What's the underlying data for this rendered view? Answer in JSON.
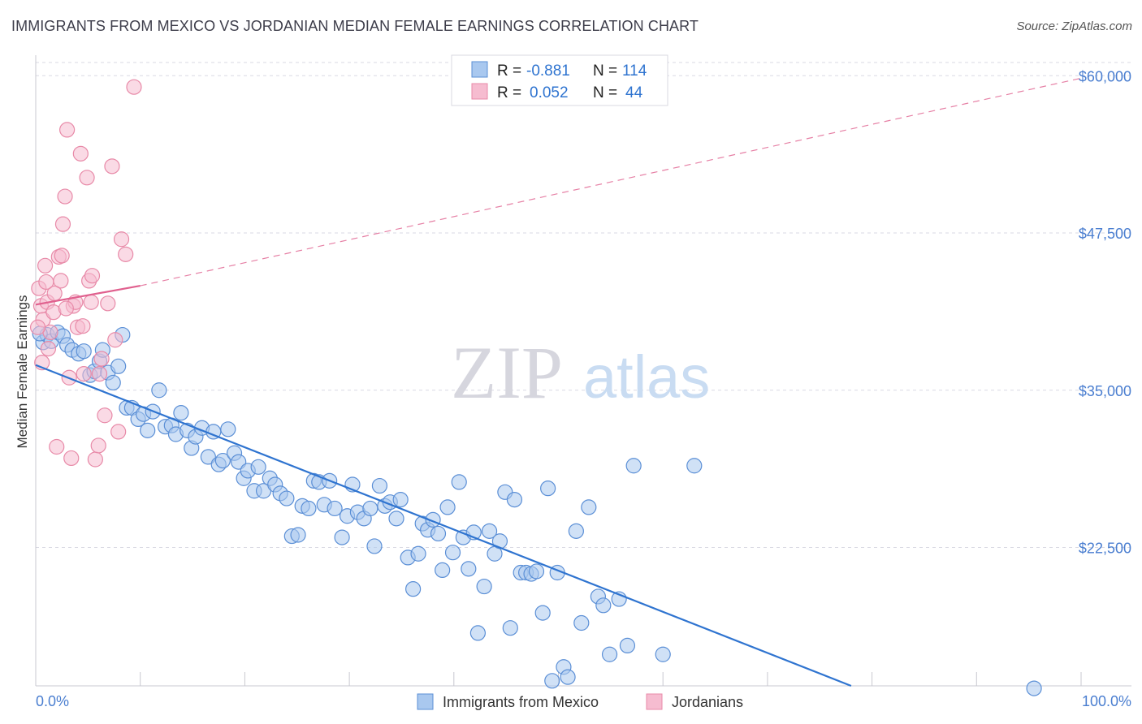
{
  "title": "IMMIGRANTS FROM MEXICO VS JORDANIAN MEDIAN FEMALE EARNINGS CORRELATION CHART",
  "source": "Source: ZipAtlas.com",
  "watermark": {
    "zip": "ZIP",
    "atlas": "atlas"
  },
  "colors": {
    "mexico_fill": "#a9c8ef",
    "mexico_stroke": "#5b8fd6",
    "mexico_line": "#2f74d0",
    "jordan_fill": "#f6bcd0",
    "jordan_stroke": "#e88aa8",
    "jordan_line": "#e0608e",
    "axis_text": "#4a7ed0",
    "grid": "#d9d9e3"
  },
  "legend": {
    "rows": [
      {
        "r_label": "R =",
        "r_value": "-0.881",
        "n_label": "N =",
        "n_value": "114"
      },
      {
        "r_label": "R =",
        "r_value": "0.052",
        "n_label": "N =",
        "n_value": "44"
      }
    ]
  },
  "chart_data": {
    "type": "scatter",
    "title": "IMMIGRANTS FROM MEXICO VS JORDANIAN MEDIAN FEMALE EARNINGS CORRELATION CHART",
    "xlabel": "",
    "ylabel": "Median Female Earnings",
    "xlim": [
      0,
      100
    ],
    "ylim": [
      11500,
      61500
    ],
    "x_tick_labels": [
      "0.0%",
      "100.0%"
    ],
    "y_ticks": [
      22500,
      35000,
      47500,
      60000
    ],
    "y_tick_labels": [
      "$22,500",
      "$35,000",
      "$47,500",
      "$60,000"
    ],
    "grid": true,
    "legend_position": "top-center",
    "series": [
      {
        "name": "Immigrants from Mexico",
        "trend": {
          "x": [
            0,
            78
          ],
          "y": [
            37000,
            11500
          ],
          "dashed_to": null
        },
        "points": [
          [
            0.7,
            38.8
          ],
          [
            1.1,
            39.4
          ],
          [
            1.5,
            38.9
          ],
          [
            2.1,
            39.6
          ],
          [
            2.6,
            39.3
          ],
          [
            3.0,
            38.6
          ],
          [
            3.5,
            38.2
          ],
          [
            4.1,
            37.9
          ],
          [
            4.6,
            38.1
          ],
          [
            5.2,
            36.2
          ],
          [
            5.6,
            36.5
          ],
          [
            6.1,
            37.3
          ],
          [
            6.4,
            38.2
          ],
          [
            6.9,
            36.4
          ],
          [
            7.4,
            35.6
          ],
          [
            7.9,
            36.9
          ],
          [
            8.3,
            39.4
          ],
          [
            8.7,
            33.6
          ],
          [
            9.2,
            33.6
          ],
          [
            9.8,
            32.7
          ],
          [
            10.3,
            33.1
          ],
          [
            10.7,
            31.8
          ],
          [
            11.2,
            33.3
          ],
          [
            11.8,
            35.0
          ],
          [
            12.4,
            32.1
          ],
          [
            13.0,
            32.2
          ],
          [
            13.4,
            31.5
          ],
          [
            13.9,
            33.2
          ],
          [
            14.5,
            31.8
          ],
          [
            14.9,
            30.4
          ],
          [
            15.3,
            31.3
          ],
          [
            15.9,
            32.0
          ],
          [
            16.5,
            29.7
          ],
          [
            17.0,
            31.7
          ],
          [
            17.5,
            29.1
          ],
          [
            17.9,
            29.4
          ],
          [
            18.4,
            31.9
          ],
          [
            19.0,
            30.0
          ],
          [
            19.4,
            29.3
          ],
          [
            19.9,
            28.0
          ],
          [
            20.3,
            28.6
          ],
          [
            20.9,
            27.0
          ],
          [
            21.3,
            28.9
          ],
          [
            21.8,
            27.0
          ],
          [
            22.4,
            28.0
          ],
          [
            22.9,
            27.5
          ],
          [
            23.4,
            26.8
          ],
          [
            24.0,
            26.4
          ],
          [
            24.5,
            23.4
          ],
          [
            25.1,
            23.5
          ],
          [
            25.5,
            25.8
          ],
          [
            26.1,
            25.6
          ],
          [
            26.6,
            27.8
          ],
          [
            27.1,
            27.7
          ],
          [
            27.6,
            25.9
          ],
          [
            28.1,
            27.8
          ],
          [
            28.6,
            25.6
          ],
          [
            29.3,
            23.3
          ],
          [
            29.8,
            25.0
          ],
          [
            30.3,
            27.5
          ],
          [
            30.8,
            25.3
          ],
          [
            31.4,
            24.8
          ],
          [
            32.0,
            25.6
          ],
          [
            32.4,
            22.6
          ],
          [
            32.9,
            27.4
          ],
          [
            33.4,
            25.8
          ],
          [
            33.9,
            26.1
          ],
          [
            34.5,
            24.8
          ],
          [
            34.9,
            26.3
          ],
          [
            35.6,
            21.7
          ],
          [
            36.1,
            19.2
          ],
          [
            36.6,
            22.0
          ],
          [
            37.0,
            24.4
          ],
          [
            37.5,
            23.9
          ],
          [
            38.0,
            24.7
          ],
          [
            38.5,
            23.6
          ],
          [
            38.9,
            20.7
          ],
          [
            39.4,
            25.7
          ],
          [
            39.9,
            22.1
          ],
          [
            40.5,
            27.7
          ],
          [
            40.9,
            23.3
          ],
          [
            41.4,
            20.8
          ],
          [
            41.9,
            23.7
          ],
          [
            42.3,
            15.7
          ],
          [
            42.9,
            19.4
          ],
          [
            43.4,
            23.8
          ],
          [
            43.9,
            22.0
          ],
          [
            44.4,
            23.0
          ],
          [
            44.9,
            26.9
          ],
          [
            45.4,
            16.1
          ],
          [
            45.8,
            26.3
          ],
          [
            46.4,
            20.5
          ],
          [
            46.9,
            20.5
          ],
          [
            47.4,
            20.4
          ],
          [
            47.9,
            20.6
          ],
          [
            48.5,
            17.3
          ],
          [
            49.0,
            27.2
          ],
          [
            49.4,
            11.9
          ],
          [
            49.9,
            20.5
          ],
          [
            50.5,
            13.0
          ],
          [
            50.9,
            12.2
          ],
          [
            51.7,
            23.8
          ],
          [
            52.2,
            16.5
          ],
          [
            52.9,
            25.7
          ],
          [
            53.8,
            18.6
          ],
          [
            54.3,
            17.9
          ],
          [
            54.9,
            14.0
          ],
          [
            55.8,
            18.4
          ],
          [
            56.6,
            14.7
          ],
          [
            57.2,
            29.0
          ],
          [
            60.0,
            14.0
          ],
          [
            63.0,
            29.0
          ],
          [
            95.5,
            11.3
          ],
          [
            0.4,
            39.5
          ]
        ]
      },
      {
        "name": "Jordanians",
        "trend": {
          "x": [
            0,
            10
          ],
          "y": [
            41800,
            43300
          ],
          "dashed_to": [
            100,
            59800
          ]
        },
        "points": [
          [
            0.3,
            43.1
          ],
          [
            0.5,
            41.7
          ],
          [
            0.7,
            40.6
          ],
          [
            0.9,
            44.9
          ],
          [
            1.1,
            42.0
          ],
          [
            1.4,
            39.6
          ],
          [
            1.7,
            41.2
          ],
          [
            2.0,
            30.5
          ],
          [
            2.2,
            45.6
          ],
          [
            2.4,
            43.7
          ],
          [
            2.6,
            48.2
          ],
          [
            2.8,
            50.4
          ],
          [
            3.0,
            55.7
          ],
          [
            3.2,
            36.0
          ],
          [
            3.4,
            29.6
          ],
          [
            3.6,
            41.7
          ],
          [
            3.8,
            42.0
          ],
          [
            4.0,
            40.0
          ],
          [
            4.3,
            53.8
          ],
          [
            4.6,
            36.3
          ],
          [
            4.9,
            51.9
          ],
          [
            5.1,
            43.7
          ],
          [
            5.4,
            44.1
          ],
          [
            5.7,
            29.5
          ],
          [
            6.0,
            30.6
          ],
          [
            6.3,
            37.5
          ],
          [
            6.6,
            33.0
          ],
          [
            6.9,
            41.9
          ],
          [
            7.3,
            52.8
          ],
          [
            7.6,
            39.0
          ],
          [
            7.9,
            31.7
          ],
          [
            8.2,
            47.0
          ],
          [
            8.6,
            45.8
          ],
          [
            0.6,
            37.2
          ],
          [
            1.8,
            42.7
          ],
          [
            2.9,
            41.5
          ],
          [
            4.5,
            40.1
          ],
          [
            5.3,
            42.0
          ],
          [
            1.0,
            43.6
          ],
          [
            0.2,
            40.0
          ],
          [
            6.1,
            36.3
          ],
          [
            2.5,
            45.7
          ],
          [
            1.2,
            38.3
          ],
          [
            9.4,
            59.1
          ]
        ]
      }
    ]
  }
}
